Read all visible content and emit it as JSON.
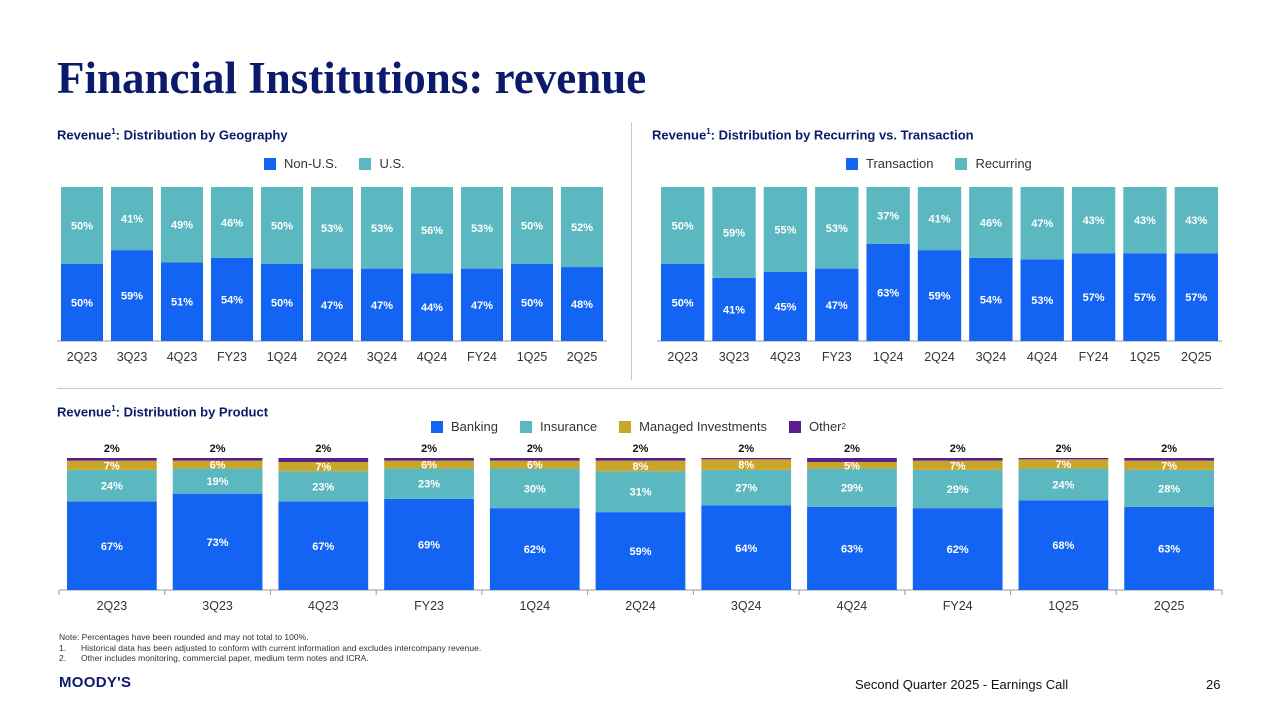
{
  "title": "Financial Institutions: revenue",
  "colors": {
    "blue": "#1464f4",
    "teal": "#5bb8c0",
    "gold": "#c9a52a",
    "purple": "#5a1e8c",
    "navy": "#0b1a6b",
    "axis": "#999999"
  },
  "chart_data": [
    {
      "type": "bar",
      "stacked": true,
      "title": "Revenue",
      "title_sup": "1",
      "title_suffix": ": Distribution by Geography",
      "categories": [
        "2Q23",
        "3Q23",
        "4Q23",
        "FY23",
        "1Q24",
        "2Q24",
        "3Q24",
        "4Q24",
        "FY24",
        "1Q25",
        "2Q25"
      ],
      "series": [
        {
          "name": "Non-U.S.",
          "color": "#1464f4",
          "values": [
            50,
            59,
            51,
            54,
            50,
            47,
            47,
            44,
            47,
            50,
            48
          ]
        },
        {
          "name": "U.S.",
          "color": "#5bb8c0",
          "values": [
            50,
            41,
            49,
            46,
            50,
            53,
            53,
            56,
            53,
            50,
            52
          ]
        }
      ],
      "value_format": "percent",
      "ylim": [
        0,
        100
      ]
    },
    {
      "type": "bar",
      "stacked": true,
      "title": "Revenue",
      "title_sup": "1",
      "title_suffix": ": Distribution by Recurring vs. Transaction",
      "categories": [
        "2Q23",
        "3Q23",
        "4Q23",
        "FY23",
        "1Q24",
        "2Q24",
        "3Q24",
        "4Q24",
        "FY24",
        "1Q25",
        "2Q25"
      ],
      "series": [
        {
          "name": "Transaction",
          "color": "#1464f4",
          "values": [
            50,
            41,
            45,
            47,
            63,
            59,
            54,
            53,
            57,
            57,
            57
          ]
        },
        {
          "name": "Recurring",
          "color": "#5bb8c0",
          "values": [
            50,
            59,
            55,
            53,
            37,
            41,
            46,
            47,
            43,
            43,
            43
          ]
        }
      ],
      "value_format": "percent",
      "ylim": [
        0,
        100
      ]
    },
    {
      "type": "bar",
      "stacked": true,
      "title": "Revenue",
      "title_sup": "1",
      "title_suffix": ": Distribution by Product",
      "categories": [
        "2Q23",
        "3Q23",
        "4Q23",
        "FY23",
        "1Q24",
        "2Q24",
        "3Q24",
        "4Q24",
        "FY24",
        "1Q25",
        "2Q25"
      ],
      "series": [
        {
          "name": "Banking",
          "color": "#1464f4",
          "values": [
            67,
            73,
            67,
            69,
            62,
            59,
            64,
            63,
            62,
            68,
            63
          ]
        },
        {
          "name": "Insurance",
          "color": "#5bb8c0",
          "values": [
            24,
            19,
            23,
            23,
            30,
            31,
            27,
            29,
            29,
            24,
            28
          ]
        },
        {
          "name": "Managed Investments",
          "color": "#c9a52a",
          "values": [
            7,
            6,
            7,
            6,
            6,
            8,
            8,
            5,
            7,
            7,
            7
          ]
        },
        {
          "name": "Other",
          "name_sup": "2",
          "color": "#5a1e8c",
          "values": [
            2,
            2,
            2,
            2,
            2,
            2,
            2,
            2,
            2,
            2,
            2
          ]
        }
      ],
      "value_format": "percent",
      "ylim": [
        0,
        100
      ]
    }
  ],
  "notes": {
    "intro": "Note: Percentages have been rounded and may not total to 100%.",
    "items": [
      {
        "num": "1.",
        "text": "Historical data has been adjusted to conform with current information and excludes intercompany revenue."
      },
      {
        "num": "2.",
        "text": "Other includes monitoring, commercial paper, medium term notes and ICRA."
      }
    ]
  },
  "footer": {
    "logo": "MOODY'S",
    "event": "Second Quarter 2025 - Earnings Call",
    "page": "26"
  }
}
